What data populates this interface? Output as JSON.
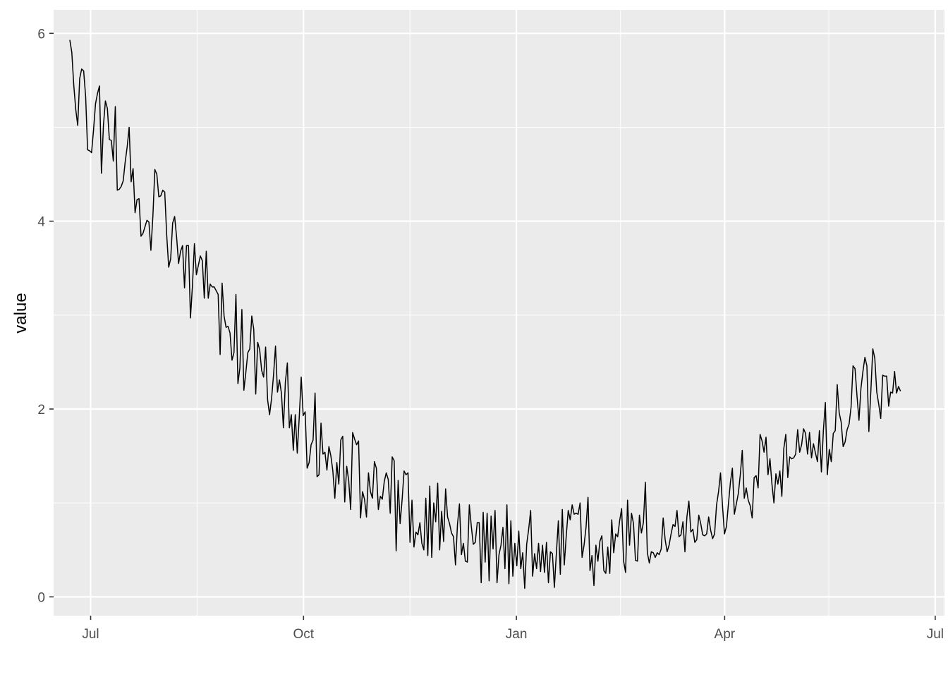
{
  "chart_data": {
    "type": "line",
    "title": "",
    "xlabel": "",
    "ylabel": "value",
    "x_start": "2020-06-22",
    "x_end": "2021-06-16",
    "xlim": [
      "2020-06-15",
      "2021-07-05"
    ],
    "ylim": [
      -0.2,
      6.25
    ],
    "y_ticks": [
      0,
      2,
      4,
      6
    ],
    "y_tick_labels": [
      "0",
      "2",
      "4",
      "6"
    ],
    "x_ticks": [
      "2020-07-01",
      "2020-10-01",
      "2021-01-01",
      "2021-04-01",
      "2021-07-01"
    ],
    "x_tick_labels": [
      "Jul",
      "Oct",
      "Jan",
      "Apr",
      "Jul"
    ],
    "x_minor_ticks": [
      "2020-08-16",
      "2020-11-16",
      "2021-02-15",
      "2021-05-16"
    ],
    "y_minor_ticks": [
      1,
      3,
      5
    ],
    "grid": true,
    "colors": {
      "panel": "#EBEBEB",
      "grid": "#FFFFFF",
      "line": "#000000"
    },
    "series": [
      {
        "name": "",
        "values": [
          5.93,
          5.8,
          5.45,
          5.19,
          5.02,
          5.52,
          5.62,
          5.6,
          5.33,
          4.76,
          4.75,
          4.73,
          4.97,
          5.25,
          5.36,
          5.44,
          4.51,
          5.02,
          5.28,
          5.2,
          4.87,
          4.86,
          4.64,
          5.22,
          4.33,
          4.34,
          4.37,
          4.43,
          4.63,
          4.79,
          5.0,
          4.42,
          4.56,
          4.09,
          4.23,
          4.24,
          3.84,
          3.87,
          3.94,
          4.01,
          3.99,
          3.69,
          4.05,
          4.55,
          4.5,
          4.26,
          4.27,
          4.33,
          4.31,
          3.85,
          3.51,
          3.6,
          3.98,
          4.05,
          3.83,
          3.55,
          3.68,
          3.74,
          3.29,
          3.74,
          3.74,
          2.97,
          3.31,
          3.76,
          3.43,
          3.53,
          3.63,
          3.58,
          3.18,
          3.68,
          3.18,
          3.33,
          3.3,
          3.3,
          3.26,
          3.22,
          2.58,
          3.34,
          2.99,
          2.87,
          2.88,
          2.81,
          2.52,
          2.6,
          3.22,
          2.27,
          2.44,
          3.06,
          2.2,
          2.39,
          2.6,
          2.64,
          2.99,
          2.85,
          2.16,
          2.71,
          2.63,
          2.41,
          2.34,
          2.66,
          2.1,
          1.94,
          2.11,
          2.36,
          2.67,
          2.18,
          2.31,
          2.17,
          1.8,
          2.29,
          2.49,
          1.8,
          1.94,
          1.56,
          1.94,
          1.53,
          1.91,
          2.34,
          1.93,
          1.97,
          1.37,
          1.43,
          1.62,
          1.67,
          2.17,
          1.28,
          1.3,
          1.85,
          1.52,
          1.54,
          1.35,
          1.6,
          1.5,
          1.34,
          1.05,
          1.43,
          1.2,
          1.67,
          1.71,
          1.01,
          1.39,
          1.24,
          0.93,
          1.75,
          1.68,
          1.62,
          1.66,
          0.84,
          1.12,
          1.04,
          0.85,
          1.32,
          1.12,
          1.05,
          1.44,
          1.37,
          0.93,
          1.07,
          1.04,
          1.23,
          1.32,
          1.25,
          0.89,
          1.49,
          1.45,
          0.49,
          1.24,
          0.78,
          1.03,
          1.34,
          1.3,
          1.32,
          0.58,
          1.03,
          0.53,
          0.69,
          0.66,
          0.79,
          0.57,
          0.5,
          1.05,
          0.44,
          1.18,
          0.42,
          1.0,
          0.8,
          1.21,
          0.5,
          0.91,
          0.59,
          1.15,
          0.85,
          0.78,
          0.68,
          0.64,
          0.34,
          0.77,
          0.99,
          0.45,
          0.57,
          0.38,
          0.37,
          0.98,
          0.75,
          0.56,
          0.58,
          0.79,
          0.79,
          0.15,
          0.9,
          0.37,
          0.89,
          0.17,
          0.86,
          0.51,
          0.92,
          0.15,
          0.45,
          0.55,
          0.74,
          0.3,
          0.98,
          0.14,
          0.81,
          0.22,
          0.57,
          0.33,
          0.7,
          0.3,
          0.47,
          0.09,
          0.56,
          0.72,
          0.92,
          0.22,
          0.46,
          0.3,
          0.57,
          0.27,
          0.55,
          0.26,
          0.58,
          0.15,
          0.48,
          0.46,
          0.1,
          0.46,
          0.81,
          0.24,
          0.93,
          0.34,
          0.65,
          0.92,
          0.82,
          0.98,
          0.88,
          0.89,
          0.88,
          1.0,
          0.42,
          0.55,
          0.74,
          1.06,
          0.28,
          0.44,
          0.12,
          0.55,
          0.38,
          0.59,
          0.65,
          0.28,
          0.25,
          0.53,
          0.25,
          0.82,
          0.47,
          0.67,
          0.64,
          0.81,
          0.94,
          0.38,
          0.26,
          1.03,
          0.55,
          0.89,
          0.78,
          0.39,
          0.38,
          0.87,
          0.68,
          0.79,
          1.22,
          0.47,
          0.36,
          0.48,
          0.47,
          0.42,
          0.47,
          0.45,
          0.51,
          0.84,
          0.61,
          0.48,
          0.55,
          0.67,
          0.77,
          0.75,
          0.92,
          0.64,
          0.66,
          0.8,
          0.48,
          0.85,
          1.02,
          0.69,
          0.72,
          0.58,
          0.61,
          0.87,
          0.78,
          0.66,
          0.65,
          0.67,
          0.85,
          0.71,
          0.62,
          0.67,
          0.98,
          1.12,
          1.32,
          0.97,
          0.67,
          0.75,
          0.99,
          1.22,
          1.37,
          0.88,
          0.99,
          1.1,
          1.3,
          1.56,
          1.05,
          1.16,
          1.03,
          0.97,
          0.84,
          1.27,
          1.29,
          1.16,
          1.73,
          1.66,
          1.54,
          1.7,
          1.3,
          1.47,
          1.2,
          1.0,
          1.31,
          1.2,
          1.34,
          1.07,
          1.58,
          1.73,
          1.27,
          1.49,
          1.47,
          1.48,
          1.52,
          1.78,
          1.54,
          1.62,
          1.79,
          1.74,
          1.52,
          1.75,
          1.48,
          1.63,
          1.53,
          1.44,
          1.77,
          1.33,
          1.77,
          2.07,
          1.3,
          1.57,
          1.44,
          1.74,
          1.77,
          2.26,
          1.96,
          1.86,
          1.6,
          1.65,
          1.78,
          1.84,
          2.02,
          2.46,
          2.43,
          2.14,
          1.88,
          2.22,
          2.4,
          2.55,
          2.46,
          1.76,
          2.19,
          2.64,
          2.54,
          2.18,
          2.05,
          1.9,
          2.36,
          2.35,
          2.35,
          2.03,
          2.18,
          2.17,
          2.4,
          2.17,
          2.24,
          2.19
        ]
      }
    ]
  }
}
